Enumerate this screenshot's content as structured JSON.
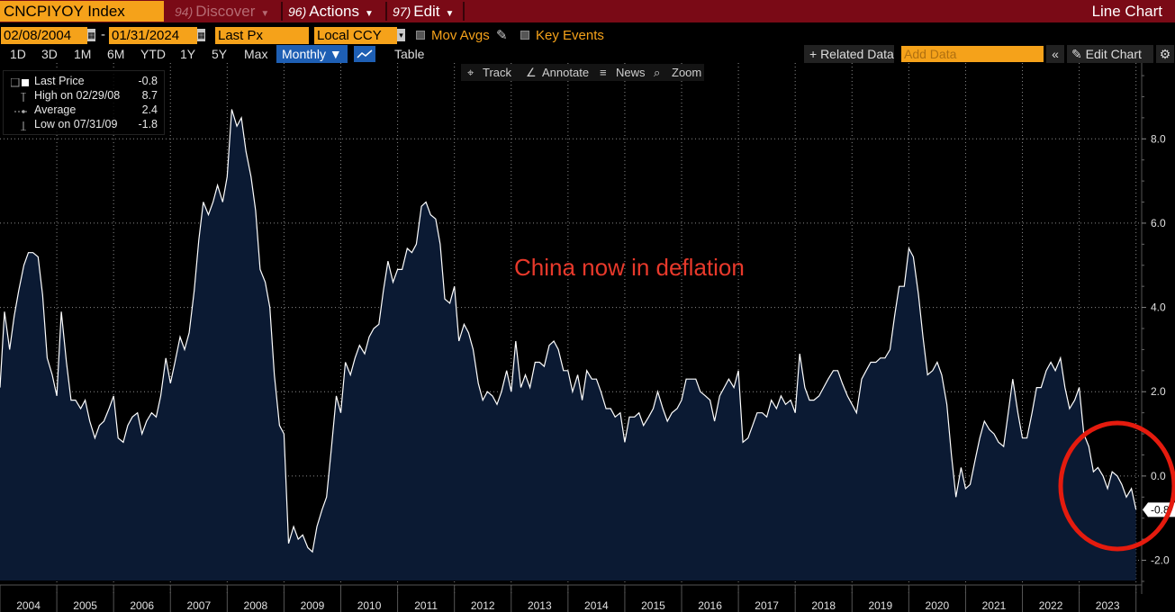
{
  "header": {
    "ticker": "CNCPIYOY Index",
    "discover": {
      "num": "94)",
      "label": "Discover"
    },
    "actions": {
      "num": "96)",
      "label": "Actions"
    },
    "edit": {
      "num": "97)",
      "label": "Edit"
    },
    "chart_title": "Line Chart"
  },
  "controls": {
    "start_date": "02/08/2004",
    "end_date": "01/31/2024",
    "dash": "-",
    "field": "Last Px",
    "currency": "Local CCY",
    "mov_avgs": "Mov Avgs",
    "key_events": "Key Events",
    "periods": [
      "1D",
      "3D",
      "1M",
      "6M",
      "YTD",
      "1Y",
      "5Y",
      "Max"
    ],
    "frequency": "Monthly ▼",
    "table": "Table",
    "related_data": "+ Related Data",
    "add_data_placeholder": "Add Data",
    "edit_chart": "✎ Edit Chart",
    "icons": {
      "collapse": "chevron-double-left-icon",
      "settings": "gear-icon",
      "calendar": "calendar-icon",
      "chart": "line-chart-icon"
    }
  },
  "tools": {
    "track": "Track",
    "annotate": "Annotate",
    "news": "News",
    "zoom": "Zoom"
  },
  "legend": {
    "last_label": "Last Price",
    "last_value": "-0.8",
    "high_label": "High on 02/29/08",
    "high_value": "8.7",
    "avg_label": "Average",
    "avg_value": "2.4",
    "low_label": "Low on 07/31/09",
    "low_value": "-1.8"
  },
  "annotation": {
    "text": "China now in deflation",
    "color": "#e8392b"
  },
  "colors": {
    "line": "#ffffff",
    "area": "#0b1a33",
    "header": "#7a0a16",
    "field": "#f5a21a",
    "circle": "#e51b0e"
  },
  "chart_data": {
    "type": "area",
    "title": "",
    "xlabel": "",
    "ylabel": "",
    "xlim": [
      2004.0,
      2024.1
    ],
    "ylim": [
      -2.8,
      9.8
    ],
    "yticks": [
      -2.0,
      0.0,
      2.0,
      4.0,
      6.0,
      8.0
    ],
    "ytick_labels": [
      "-2.0",
      "0.0",
      "2.0",
      "4.0",
      "6.0",
      "8.0"
    ],
    "xtick_labels": [
      "2004",
      "2005",
      "2006",
      "2007",
      "2008",
      "2009",
      "2010",
      "2011",
      "2012",
      "2013",
      "2014",
      "2015",
      "2016",
      "2017",
      "2018",
      "2019",
      "2020",
      "2021",
      "2022",
      "2023"
    ],
    "grid": true,
    "last_value_label": "-0.8",
    "series": [
      {
        "name": "Last Price",
        "x": [
          2004.0,
          2004.08,
          2004.17,
          2004.25,
          2004.33,
          2004.42,
          2004.5,
          2004.58,
          2004.67,
          2004.75,
          2004.83,
          2004.92,
          2005.0,
          2005.08,
          2005.17,
          2005.25,
          2005.33,
          2005.42,
          2005.5,
          2005.58,
          2005.67,
          2005.75,
          2005.83,
          2005.92,
          2006.0,
          2006.08,
          2006.17,
          2006.25,
          2006.33,
          2006.42,
          2006.5,
          2006.58,
          2006.67,
          2006.75,
          2006.83,
          2006.92,
          2007.0,
          2007.08,
          2007.17,
          2007.25,
          2007.33,
          2007.42,
          2007.5,
          2007.58,
          2007.67,
          2007.75,
          2007.83,
          2007.92,
          2008.0,
          2008.08,
          2008.17,
          2008.25,
          2008.33,
          2008.42,
          2008.5,
          2008.58,
          2008.67,
          2008.75,
          2008.83,
          2008.92,
          2009.0,
          2009.08,
          2009.17,
          2009.25,
          2009.33,
          2009.42,
          2009.5,
          2009.58,
          2009.67,
          2009.75,
          2009.83,
          2009.92,
          2010.0,
          2010.08,
          2010.17,
          2010.25,
          2010.33,
          2010.42,
          2010.5,
          2010.58,
          2010.67,
          2010.75,
          2010.83,
          2010.92,
          2011.0,
          2011.08,
          2011.17,
          2011.25,
          2011.33,
          2011.42,
          2011.5,
          2011.58,
          2011.67,
          2011.75,
          2011.83,
          2011.92,
          2012.0,
          2012.08,
          2012.17,
          2012.25,
          2012.33,
          2012.42,
          2012.5,
          2012.58,
          2012.67,
          2012.75,
          2012.83,
          2012.92,
          2013.0,
          2013.08,
          2013.17,
          2013.25,
          2013.33,
          2013.42,
          2013.5,
          2013.58,
          2013.67,
          2013.75,
          2013.83,
          2013.92,
          2014.0,
          2014.08,
          2014.17,
          2014.25,
          2014.33,
          2014.42,
          2014.5,
          2014.58,
          2014.67,
          2014.75,
          2014.83,
          2014.92,
          2015.0,
          2015.08,
          2015.17,
          2015.25,
          2015.33,
          2015.42,
          2015.5,
          2015.58,
          2015.67,
          2015.75,
          2015.83,
          2015.92,
          2016.0,
          2016.08,
          2016.17,
          2016.25,
          2016.33,
          2016.42,
          2016.5,
          2016.58,
          2016.67,
          2016.75,
          2016.83,
          2016.92,
          2017.0,
          2017.08,
          2017.17,
          2017.25,
          2017.33,
          2017.42,
          2017.5,
          2017.58,
          2017.67,
          2017.75,
          2017.83,
          2017.92,
          2018.0,
          2018.08,
          2018.17,
          2018.25,
          2018.33,
          2018.42,
          2018.5,
          2018.58,
          2018.67,
          2018.75,
          2018.83,
          2018.92,
          2019.0,
          2019.08,
          2019.17,
          2019.25,
          2019.33,
          2019.42,
          2019.5,
          2019.58,
          2019.67,
          2019.75,
          2019.83,
          2019.92,
          2020.0,
          2020.08,
          2020.17,
          2020.25,
          2020.33,
          2020.42,
          2020.5,
          2020.58,
          2020.67,
          2020.75,
          2020.83,
          2020.92,
          2021.0,
          2021.08,
          2021.17,
          2021.25,
          2021.33,
          2021.42,
          2021.5,
          2021.58,
          2021.67,
          2021.75,
          2021.83,
          2021.92,
          2022.0,
          2022.08,
          2022.17,
          2022.25,
          2022.33,
          2022.42,
          2022.5,
          2022.58,
          2022.67,
          2022.75,
          2022.83,
          2022.92,
          2023.0,
          2023.08,
          2023.17,
          2023.25,
          2023.33,
          2023.42,
          2023.5,
          2023.58,
          2023.67,
          2023.75,
          2023.83,
          2023.92,
          2024.0
        ],
        "y": [
          2.1,
          3.9,
          3.0,
          3.8,
          4.4,
          5.0,
          5.3,
          5.3,
          5.2,
          4.3,
          2.8,
          2.4,
          1.9,
          3.9,
          2.7,
          1.8,
          1.8,
          1.6,
          1.8,
          1.3,
          0.9,
          1.2,
          1.3,
          1.6,
          1.9,
          0.9,
          0.8,
          1.2,
          1.4,
          1.5,
          1.0,
          1.3,
          1.5,
          1.4,
          1.9,
          2.8,
          2.2,
          2.7,
          3.3,
          3.0,
          3.4,
          4.4,
          5.6,
          6.5,
          6.2,
          6.5,
          6.9,
          6.5,
          7.1,
          8.7,
          8.3,
          8.5,
          7.7,
          7.1,
          6.3,
          4.9,
          4.6,
          4.0,
          2.4,
          1.2,
          1.0,
          -1.6,
          -1.2,
          -1.5,
          -1.4,
          -1.7,
          -1.8,
          -1.2,
          -0.8,
          -0.5,
          0.6,
          1.9,
          1.5,
          2.7,
          2.4,
          2.8,
          3.1,
          2.9,
          3.3,
          3.5,
          3.6,
          4.4,
          5.1,
          4.6,
          4.9,
          4.9,
          5.4,
          5.3,
          5.5,
          6.4,
          6.5,
          6.2,
          6.1,
          5.5,
          4.2,
          4.1,
          4.5,
          3.2,
          3.6,
          3.4,
          3.0,
          2.2,
          1.8,
          2.0,
          1.9,
          1.7,
          2.0,
          2.5,
          2.0,
          3.2,
          2.1,
          2.4,
          2.1,
          2.7,
          2.7,
          2.6,
          3.1,
          3.2,
          3.0,
          2.5,
          2.5,
          2.0,
          2.4,
          1.8,
          2.5,
          2.3,
          2.3,
          2.0,
          1.6,
          1.6,
          1.4,
          1.5,
          0.8,
          1.4,
          1.4,
          1.5,
          1.2,
          1.4,
          1.6,
          2.0,
          1.6,
          1.3,
          1.5,
          1.6,
          1.8,
          2.3,
          2.3,
          2.3,
          2.0,
          1.9,
          1.8,
          1.3,
          1.9,
          2.1,
          2.3,
          2.1,
          2.5,
          0.8,
          0.9,
          1.2,
          1.5,
          1.5,
          1.4,
          1.8,
          1.6,
          1.9,
          1.7,
          1.8,
          1.5,
          2.9,
          2.1,
          1.8,
          1.8,
          1.9,
          2.1,
          2.3,
          2.5,
          2.5,
          2.2,
          1.9,
          1.7,
          1.5,
          2.3,
          2.5,
          2.7,
          2.7,
          2.8,
          2.8,
          3.0,
          3.8,
          4.5,
          4.5,
          5.4,
          5.2,
          4.3,
          3.3,
          2.4,
          2.5,
          2.7,
          2.4,
          1.7,
          0.5,
          -0.5,
          0.2,
          -0.3,
          -0.2,
          0.4,
          0.9,
          1.3,
          1.1,
          1.0,
          0.8,
          0.7,
          1.5,
          2.3,
          1.5,
          0.9,
          0.9,
          1.5,
          2.1,
          2.1,
          2.5,
          2.7,
          2.5,
          2.8,
          2.1,
          1.6,
          1.8,
          2.1,
          1.0,
          0.7,
          0.1,
          0.2,
          0.0,
          -0.3,
          0.1,
          0.0,
          -0.2,
          -0.5,
          -0.3,
          -0.8
        ]
      }
    ]
  }
}
